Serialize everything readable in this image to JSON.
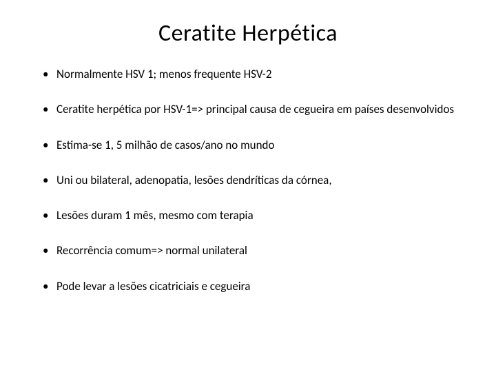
{
  "slide": {
    "title": "Ceratite Herpética",
    "title_fontsize": 34,
    "title_color": "#000000",
    "body_fontsize": 17,
    "body_color": "#000000",
    "background_color": "#ffffff",
    "bullet_marker_color": "#000000",
    "bullets": [
      "Normalmente  HSV 1;  menos frequente HSV-2",
      "Ceratite herpética por HSV-1=> principal causa de cegueira em países desenvolvidos",
      "Estima-se 1, 5 milhão de casos/ano no mundo",
      "Uni ou bilateral, adenopatia, lesões dendríticas da córnea,",
      "Lesões duram 1 mês, mesmo com terapia",
      "Recorrência comum=> normal unilateral",
      "Pode levar a lesões cicatriciais e cegueira"
    ]
  }
}
